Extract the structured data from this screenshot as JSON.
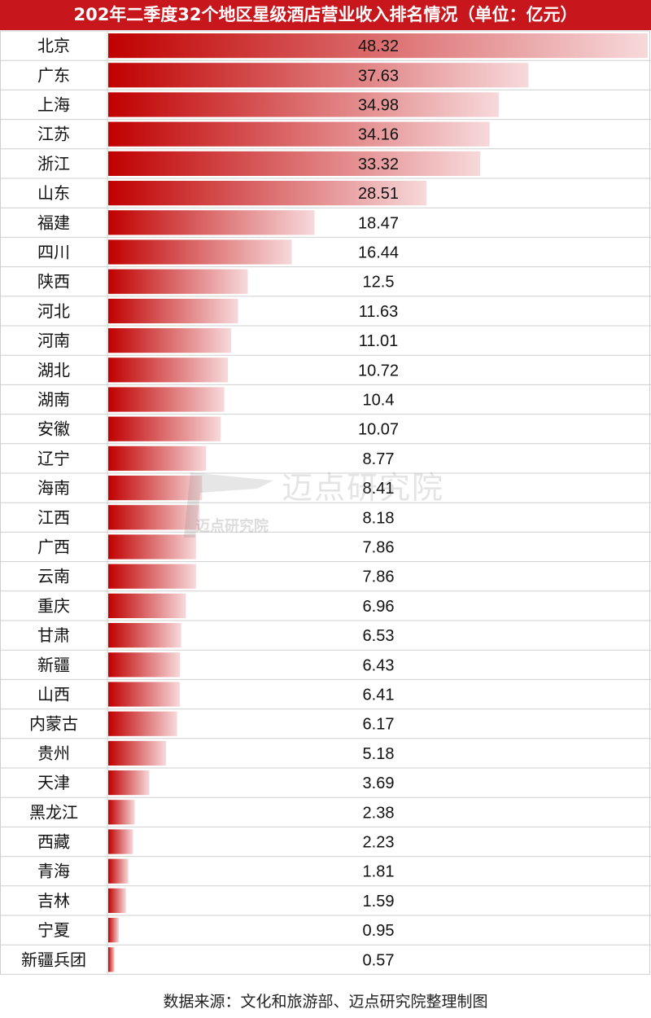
{
  "chart_data": {
    "type": "bar",
    "orientation": "horizontal",
    "title": "202年二季度32个地区星级酒店营业收入排名情况（单位：亿元）",
    "categories": [
      "北京",
      "广东",
      "上海",
      "江苏",
      "浙江",
      "山东",
      "福建",
      "四川",
      "陕西",
      "河北",
      "河南",
      "湖北",
      "湖南",
      "安徽",
      "辽宁",
      "海南",
      "江西",
      "广西",
      "云南",
      "重庆",
      "甘肃",
      "新疆",
      "山西",
      "内蒙古",
      "贵州",
      "天津",
      "黑龙江",
      "西藏",
      "青海",
      "吉林",
      "宁夏",
      "新疆兵团"
    ],
    "values": [
      48.32,
      37.63,
      34.98,
      34.16,
      33.32,
      28.51,
      18.47,
      16.44,
      12.5,
      11.63,
      11.01,
      10.72,
      10.4,
      10.07,
      8.77,
      8.41,
      8.18,
      7.86,
      7.86,
      6.96,
      6.53,
      6.43,
      6.41,
      6.17,
      5.18,
      3.69,
      2.38,
      2.23,
      1.81,
      1.59,
      0.95,
      0.57
    ],
    "value_labels": [
      "48.32",
      "37.63",
      "34.98",
      "34.16",
      "33.32",
      "28.51",
      "18.47",
      "16.44",
      "12.5",
      "11.63",
      "11.01",
      "10.72",
      "10.4",
      "10.07",
      "8.77",
      "8.41",
      "8.18",
      "7.86",
      "7.86",
      "6.96",
      "6.53",
      "6.43",
      "6.41",
      "6.17",
      "5.18",
      "3.69",
      "2.38",
      "2.23",
      "1.81",
      "1.59",
      "0.95",
      "0.57"
    ],
    "xlim": [
      0,
      48.32
    ],
    "grid": false,
    "colors": {
      "title_bg": "#c8161d",
      "bar_start": "#c00000",
      "bar_end": "#f7d9db",
      "row_line": "#cfcfcf"
    }
  },
  "watermark": {
    "large": "迈点研究院",
    "small": "迈点研究院"
  },
  "source": "数据来源：文化和旅游部、迈点研究院整理制图"
}
